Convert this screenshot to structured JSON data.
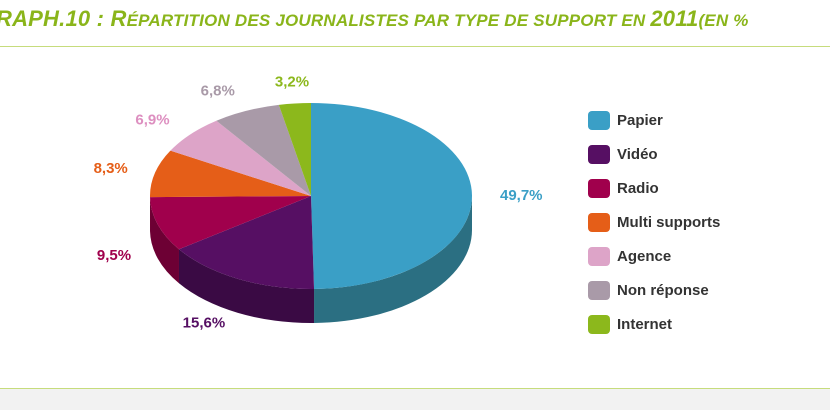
{
  "title": {
    "prefix": "RAPH.",
    "number": "10 : ",
    "r_initial": "R",
    "body": "ÉPARTITION DES JOURNALISTES PAR TYPE DE SUPPORT EN ",
    "year": "2011",
    "suffix": "(EN %"
  },
  "chart_data": {
    "type": "pie",
    "style": "3d",
    "unit": "%",
    "legend_position": "right",
    "slices": [
      {
        "name": "Papier",
        "value": 49.7,
        "label": "49,7%",
        "color": "#3a9fc6",
        "side": "#2b6f82",
        "label_color": "#3a9fc6"
      },
      {
        "name": "Vidéo",
        "value": 15.6,
        "label": "15,6%",
        "color": "#560f63",
        "side": "#3a0a44",
        "label_color": "#560f63"
      },
      {
        "name": "Radio",
        "value": 9.5,
        "label": "9,5%",
        "color": "#a0004c",
        "side": "#6d0034",
        "label_color": "#a0004c"
      },
      {
        "name": "Multi supports",
        "value": 8.3,
        "label": "8,3%",
        "color": "#e55e18",
        "side": "#a84310",
        "label_color": "#e55e18"
      },
      {
        "name": "Agence",
        "value": 6.9,
        "label": "6,9%",
        "color": "#dda4c8",
        "side": "#a9789a",
        "label_color": "#dd8fc0"
      },
      {
        "name": "Non réponse",
        "value": 6.8,
        "label": "6,8%",
        "color": "#a99aa8",
        "side": "#7a6e79",
        "label_color": "#a99aa8"
      },
      {
        "name": "Internet",
        "value": 3.2,
        "label": "3,2%",
        "color": "#8cb81c",
        "side": "#647f15",
        "label_color": "#8cb81c"
      }
    ]
  }
}
